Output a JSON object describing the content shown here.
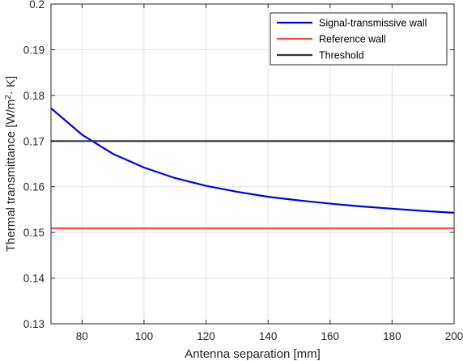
{
  "chart_data": {
    "type": "line",
    "title": "",
    "xlabel": "Antenna separation [mm]",
    "ylabel_main": "Thermal transmittance [W/m",
    "ylabel_sup": "2",
    "ylabel_tail": "· K]",
    "xlim": [
      70,
      200
    ],
    "ylim": [
      0.13,
      0.2
    ],
    "xticks": [
      80,
      100,
      120,
      140,
      160,
      180,
      200
    ],
    "xtick_labels": [
      "80",
      "100",
      "120",
      "140",
      "160",
      "180",
      "200"
    ],
    "yticks": [
      0.13,
      0.14,
      0.15,
      0.16,
      0.17,
      0.18,
      0.19,
      0.2
    ],
    "ytick_labels": [
      "0.13",
      "0.14",
      "0.15",
      "0.16",
      "0.17",
      "0.18",
      "0.19",
      "0.2"
    ],
    "grid": true,
    "legend_position": "top-right",
    "series": [
      {
        "name": "Signal-transmissive wall",
        "color": "#0000e6",
        "x": [
          70,
          80,
          90,
          100,
          110,
          120,
          130,
          140,
          150,
          160,
          170,
          180,
          190,
          200
        ],
        "y": [
          0.1772,
          0.1714,
          0.1672,
          0.1642,
          0.1619,
          0.1602,
          0.1589,
          0.1578,
          0.157,
          0.1563,
          0.1557,
          0.1552,
          0.1547,
          0.1543
        ]
      },
      {
        "name": "Reference wall",
        "color": "#ff4d4d",
        "x": [
          70,
          200
        ],
        "y": [
          0.1509,
          0.1509
        ]
      },
      {
        "name": "Threshold",
        "color": "#333333",
        "x": [
          70,
          200
        ],
        "y": [
          0.17,
          0.17
        ]
      }
    ]
  }
}
